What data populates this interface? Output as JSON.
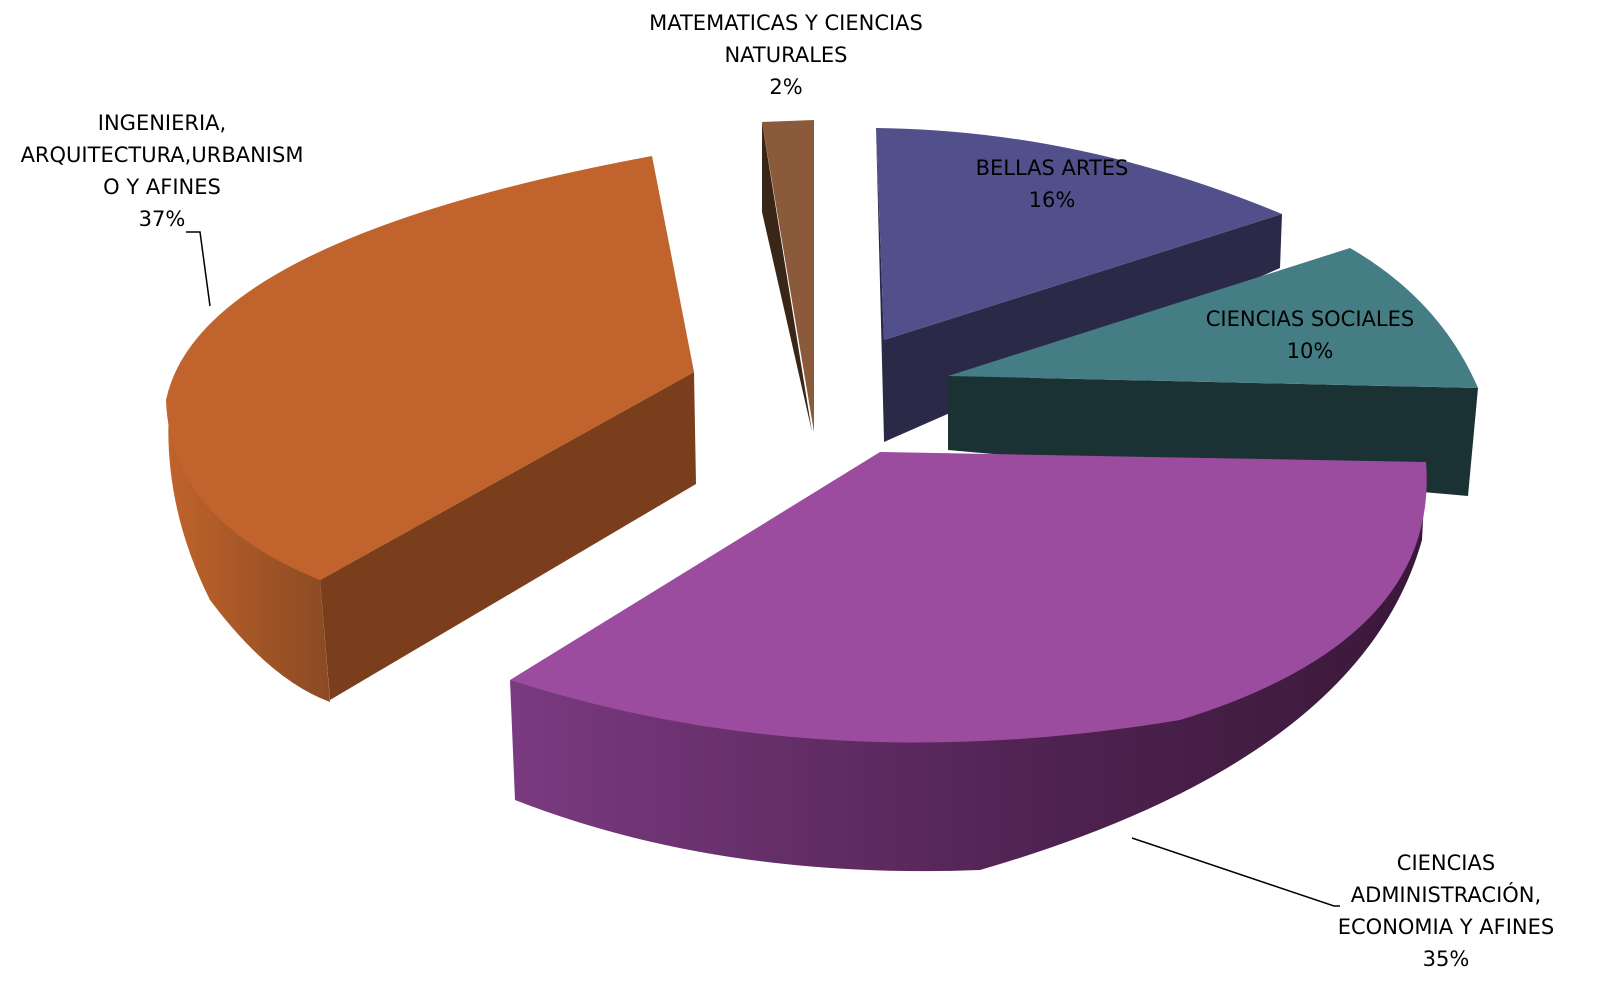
{
  "chart_data": {
    "type": "pie",
    "title": "",
    "slices": [
      {
        "label_lines": [
          "BELLAS ARTES"
        ],
        "percent_label": "16%",
        "value": 16,
        "top_color": "#52508A",
        "side_color": "#2A2947"
      },
      {
        "label_lines": [
          "CIENCIAS SOCIALES"
        ],
        "percent_label": "10%",
        "value": 10,
        "top_color": "#447E84",
        "side_color": "#1B3234"
      },
      {
        "label_lines": [
          "CIENCIAS",
          "ADMINISTRACIÓN,",
          "ECONOMIA Y AFINES"
        ],
        "percent_label": "35%",
        "value": 35,
        "top_color": "#9B4C9F",
        "side_color": "#3F1C3F"
      },
      {
        "label_lines": [
          "INGENIERIA,",
          "ARQUITECTURA,URBANISM",
          "O Y AFINES"
        ],
        "percent_label": "37%",
        "value": 37,
        "top_color": "#C0632C",
        "side_color": "#7A3E1D"
      },
      {
        "label_lines": [
          "MATEMATICAS Y CIENCIAS",
          "NATURALES"
        ],
        "percent_label": "2%",
        "value": 2,
        "top_color": "#8A5A3A",
        "side_color": "#3A2616"
      }
    ],
    "legend": "none",
    "style": "3d-exploded"
  }
}
